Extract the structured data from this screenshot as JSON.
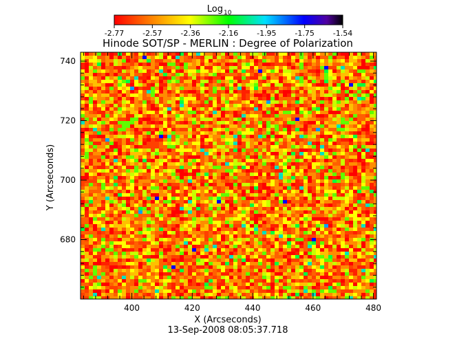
{
  "chart_data": {
    "type": "heatmap",
    "title": "Hinode SOT/SP - MERLIN : Degree of Polarization",
    "subtitle": "13-Sep-2008 08:05:37.718",
    "xlabel": "X (Arcseconds)",
    "ylabel": "Y (Arcseconds)",
    "xlim": [
      383,
      481
    ],
    "ylim": [
      660,
      743
    ],
    "x_ticks": [
      400,
      420,
      440,
      460,
      480
    ],
    "y_ticks": [
      680,
      700,
      720,
      740
    ],
    "colorbar": {
      "label_main": "Log",
      "label_sub": "10",
      "range": [
        -2.77,
        -1.54
      ],
      "ticks": [
        "-2.77",
        "-2.57",
        "-2.36",
        "-2.16",
        "-1.95",
        "-1.75",
        "-1.54"
      ],
      "colormap": "rainbow"
    },
    "grid": false
  }
}
